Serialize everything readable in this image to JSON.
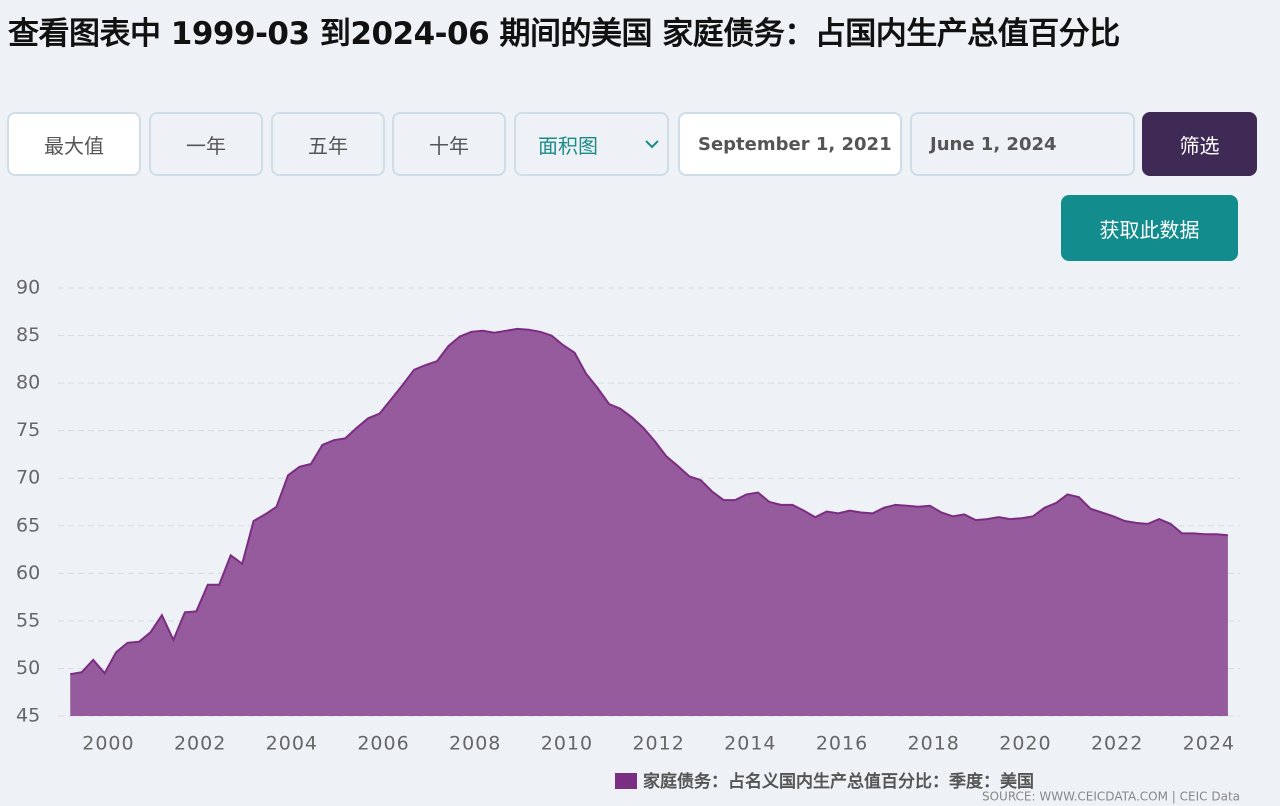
{
  "header": {
    "title": "查看图表中 1999-03 到2024-06 期间的美国 家庭债务：占国内生产总值百分比"
  },
  "controls": {
    "ranges": [
      "最大值",
      "一年",
      "五年",
      "十年"
    ],
    "chart_type": "面积图",
    "start_date": "September 1, 2021",
    "end_date": "June 1, 2024",
    "filter": "筛选",
    "download": "获取此数据"
  },
  "chart_data": {
    "type": "area",
    "x": [
      "1999-03",
      "1999-06",
      "1999-09",
      "1999-12",
      "2000-03",
      "2000-06",
      "2000-09",
      "2000-12",
      "2001-03",
      "2001-06",
      "2001-09",
      "2001-12",
      "2002-03",
      "2002-06",
      "2002-09",
      "2002-12",
      "2003-03",
      "2003-06",
      "2003-09",
      "2003-12",
      "2004-03",
      "2004-06",
      "2004-09",
      "2004-12",
      "2005-03",
      "2005-06",
      "2005-09",
      "2005-12",
      "2006-03",
      "2006-06",
      "2006-09",
      "2006-12",
      "2007-03",
      "2007-06",
      "2007-09",
      "2007-12",
      "2008-03",
      "2008-06",
      "2008-09",
      "2008-12",
      "2009-03",
      "2009-06",
      "2009-09",
      "2009-12",
      "2010-03",
      "2010-06",
      "2010-09",
      "2010-12",
      "2011-03",
      "2011-06",
      "2011-09",
      "2011-12",
      "2012-03",
      "2012-06",
      "2012-09",
      "2012-12",
      "2013-03",
      "2013-06",
      "2013-09",
      "2013-12",
      "2014-03",
      "2014-06",
      "2014-09",
      "2014-12",
      "2015-03",
      "2015-06",
      "2015-09",
      "2015-12",
      "2016-03",
      "2016-06",
      "2016-09",
      "2016-12",
      "2017-03",
      "2017-06",
      "2017-09",
      "2017-12",
      "2018-03",
      "2018-06",
      "2018-09",
      "2018-12",
      "2019-03",
      "2019-06",
      "2019-09",
      "2019-12",
      "2020-03",
      "2020-06",
      "2020-09",
      "2020-12",
      "2021-03",
      "2021-06",
      "2021-09",
      "2021-12",
      "2022-03",
      "2022-06",
      "2022-09",
      "2022-12",
      "2023-03",
      "2023-06",
      "2023-09",
      "2023-12",
      "2024-03",
      "2024-06"
    ],
    "series": [
      {
        "name": "家庭债务：占名义国内生产总值百分比：季度：美国",
        "color": "#7b2d82",
        "fill": "#955b9c",
        "values": [
          49.4,
          49.6,
          50.9,
          49.5,
          51.7,
          52.7,
          52.8,
          53.8,
          55.6,
          53.0,
          55.9,
          56.0,
          58.8,
          58.8,
          61.9,
          61.0,
          65.5,
          66.2,
          67.0,
          70.3,
          71.2,
          71.5,
          73.5,
          74.0,
          74.2,
          75.3,
          76.3,
          76.8,
          78.3,
          79.8,
          81.4,
          81.9,
          82.3,
          83.9,
          84.9,
          85.4,
          85.5,
          85.3,
          85.5,
          85.7,
          85.6,
          85.4,
          85.0,
          84.0,
          83.2,
          81.0,
          79.5,
          77.8,
          77.3,
          76.4,
          75.3,
          73.9,
          72.3,
          71.3,
          70.2,
          69.8,
          68.6,
          67.7,
          67.7,
          68.3,
          68.5,
          67.5,
          67.2,
          67.2,
          66.6,
          65.9,
          66.5,
          66.3,
          66.6,
          66.4,
          66.3,
          66.9,
          67.2,
          67.1,
          67.0,
          67.1,
          66.4,
          66.0,
          66.2,
          65.6,
          65.7,
          65.9,
          65.7,
          65.8,
          66.0,
          66.9,
          67.4,
          68.3,
          68.0,
          66.8,
          66.4,
          66.0,
          65.5,
          65.3,
          65.2,
          65.7,
          65.2,
          64.2,
          64.2,
          64.1,
          64.1,
          64.0
        ]
      }
    ],
    "xlim": [
      1998.9,
      2024.68
    ],
    "xticks": [
      2000,
      2002,
      2004,
      2006,
      2008,
      2010,
      2012,
      2014,
      2016,
      2018,
      2020,
      2022,
      2024
    ],
    "ylim": [
      45,
      90
    ],
    "yticks": [
      45,
      50,
      55,
      60,
      65,
      70,
      75,
      80,
      85,
      90
    ],
    "grid": true,
    "legend": "bottom"
  },
  "source": "SOURCE: WWW.CEICDATA.COM | CEIC Data"
}
